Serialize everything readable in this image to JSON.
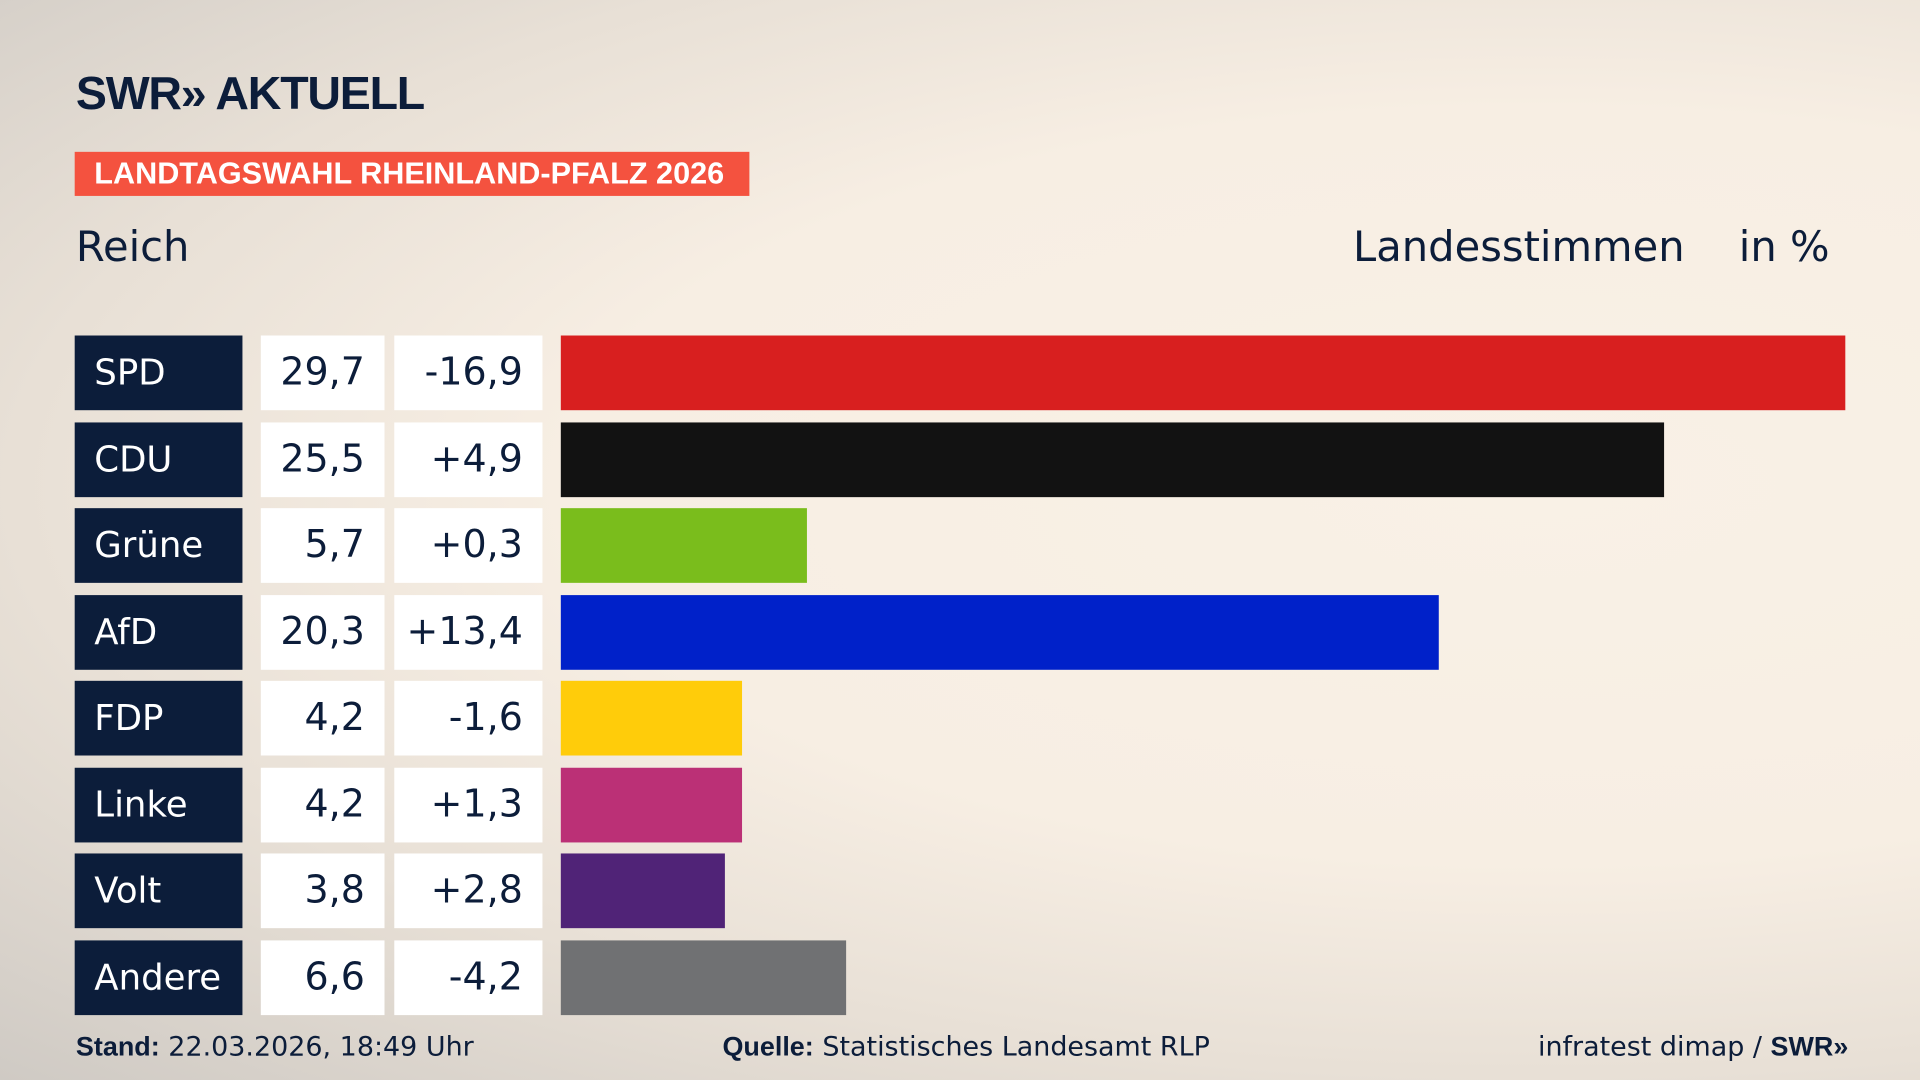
{
  "header": {
    "logo_text": "SWR» AKTUELL",
    "banner": "LANDTAGSWAHL RHEINLAND-PFALZ 2026",
    "region": "Reich",
    "measure": "Landesstimmen",
    "unit": "in %"
  },
  "chart_data": {
    "type": "bar",
    "orientation": "horizontal",
    "categories": [
      "SPD",
      "CDU",
      "Grüne",
      "AfD",
      "FDP",
      "Linke",
      "Volt",
      "Andere"
    ],
    "values": [
      29.7,
      25.5,
      5.7,
      20.3,
      4.2,
      4.2,
      3.8,
      6.6
    ],
    "value_labels": [
      "29,7",
      "25,5",
      "5,7",
      "20,3",
      "4,2",
      "4,2",
      "3,8",
      "6,6"
    ],
    "diff_labels": [
      "-16,9",
      "+4,9",
      "+0,3",
      "+13,4",
      "-1,6",
      "+1,3",
      "+2,8",
      "-4,2"
    ],
    "colors": [
      "#d81f1f",
      "#121212",
      "#7abd1c",
      "#0021c9",
      "#ffcc0a",
      "#bb3076",
      "#502377",
      "#707173"
    ],
    "xlim": [
      0,
      29.7
    ],
    "grid": false,
    "legend": "none"
  },
  "footer": {
    "stand_label": "Stand:",
    "stand_value": "22.03.2026, 18:49 Uhr",
    "source_label": "Quelle:",
    "source_value": "Statistisches Landesamt RLP",
    "credit": "infratest dimap / ",
    "credit_brand": "SWR»"
  }
}
